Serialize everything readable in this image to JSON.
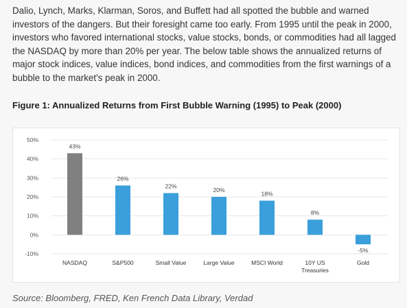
{
  "article": {
    "paragraph": "Dalio, Lynch, Marks, Klarman, Soros, and Buffett had all spotted the bubble and warned investors of the dangers. But their foresight came too early. From 1995 until the peak in 2000, investors who favored international stocks, value stocks, bonds, or commodities had all lagged the NASDAQ by more than 20% per year. The below table shows the annualized returns of major stock indices, value indices, bond indices, and commodities from the first warnings of a bubble to the market's peak in 2000.",
    "figure_title": "Figure 1: Annualized Returns from First Bubble Warning (1995) to Peak (2000)",
    "source": "Source: Bloomberg, FRED, Ken French Data Library, Verdad"
  },
  "chart_data": {
    "type": "bar",
    "title": "",
    "xlabel": "",
    "ylabel": "",
    "categories": [
      [
        "NASDAQ"
      ],
      [
        "S&P500"
      ],
      [
        "Small Value"
      ],
      [
        "Large Value"
      ],
      [
        "MSCI World"
      ],
      [
        "10Y US",
        "Treasuries"
      ],
      [
        "Gold"
      ]
    ],
    "values": [
      43,
      26,
      22,
      20,
      18,
      8,
      -5
    ],
    "data_labels": [
      "43%",
      "26%",
      "22%",
      "20%",
      "18%",
      "8%",
      "-5%"
    ],
    "ylim": [
      -10,
      50
    ],
    "yticks": [
      50,
      40,
      30,
      20,
      10,
      0,
      -10
    ],
    "ytick_labels": [
      "50%",
      "40%",
      "30%",
      "20%",
      "10%",
      "0%",
      "-10%"
    ],
    "grid": true,
    "colors": {
      "highlight": "#808080",
      "default": "#3a9fdb",
      "grid": "#e6e6e6",
      "axis_text": "#555555"
    },
    "highlight_index": 0
  }
}
